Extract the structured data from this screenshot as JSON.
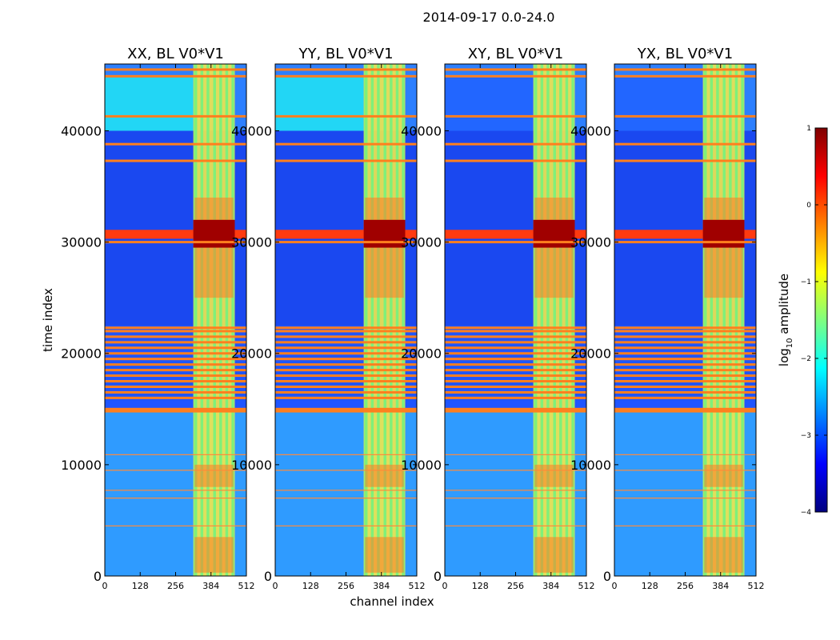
{
  "figure_title": "2014-09-17 0.0-24.0",
  "chart_data": {
    "type": "heatmap",
    "suptitle": "2014-09-17 0.0-24.0",
    "xlabel": "channel index",
    "ylabel": "time index",
    "xlim": [
      0,
      512
    ],
    "ylim": [
      0,
      46000
    ],
    "xticks": [
      0,
      128,
      256,
      384,
      512
    ],
    "yticks": [
      0,
      10000,
      20000,
      30000,
      40000
    ],
    "xtick_labels": [
      "0",
      "128",
      "256",
      "384",
      "512"
    ],
    "ytick_labels": [
      "0",
      "10000",
      "20000",
      "30000",
      "40000"
    ],
    "panels": [
      {
        "title": "XX, BL V0*V1"
      },
      {
        "title": "YY, BL V0*V1"
      },
      {
        "title": "XY, BL V0*V1"
      },
      {
        "title": "YX, BL V0*V1"
      }
    ],
    "colorbar": {
      "label": "log10 amplitude",
      "label_main": "log",
      "label_sub": "10",
      "label_rest": " amplitude",
      "range": [
        -4,
        1
      ],
      "ticks": [
        -4,
        -3,
        -2,
        -1,
        0,
        1
      ],
      "tick_labels": [
        "−4",
        "−3",
        "−2",
        "−1",
        "0",
        "1"
      ],
      "colormap": "jet"
    }
  }
}
